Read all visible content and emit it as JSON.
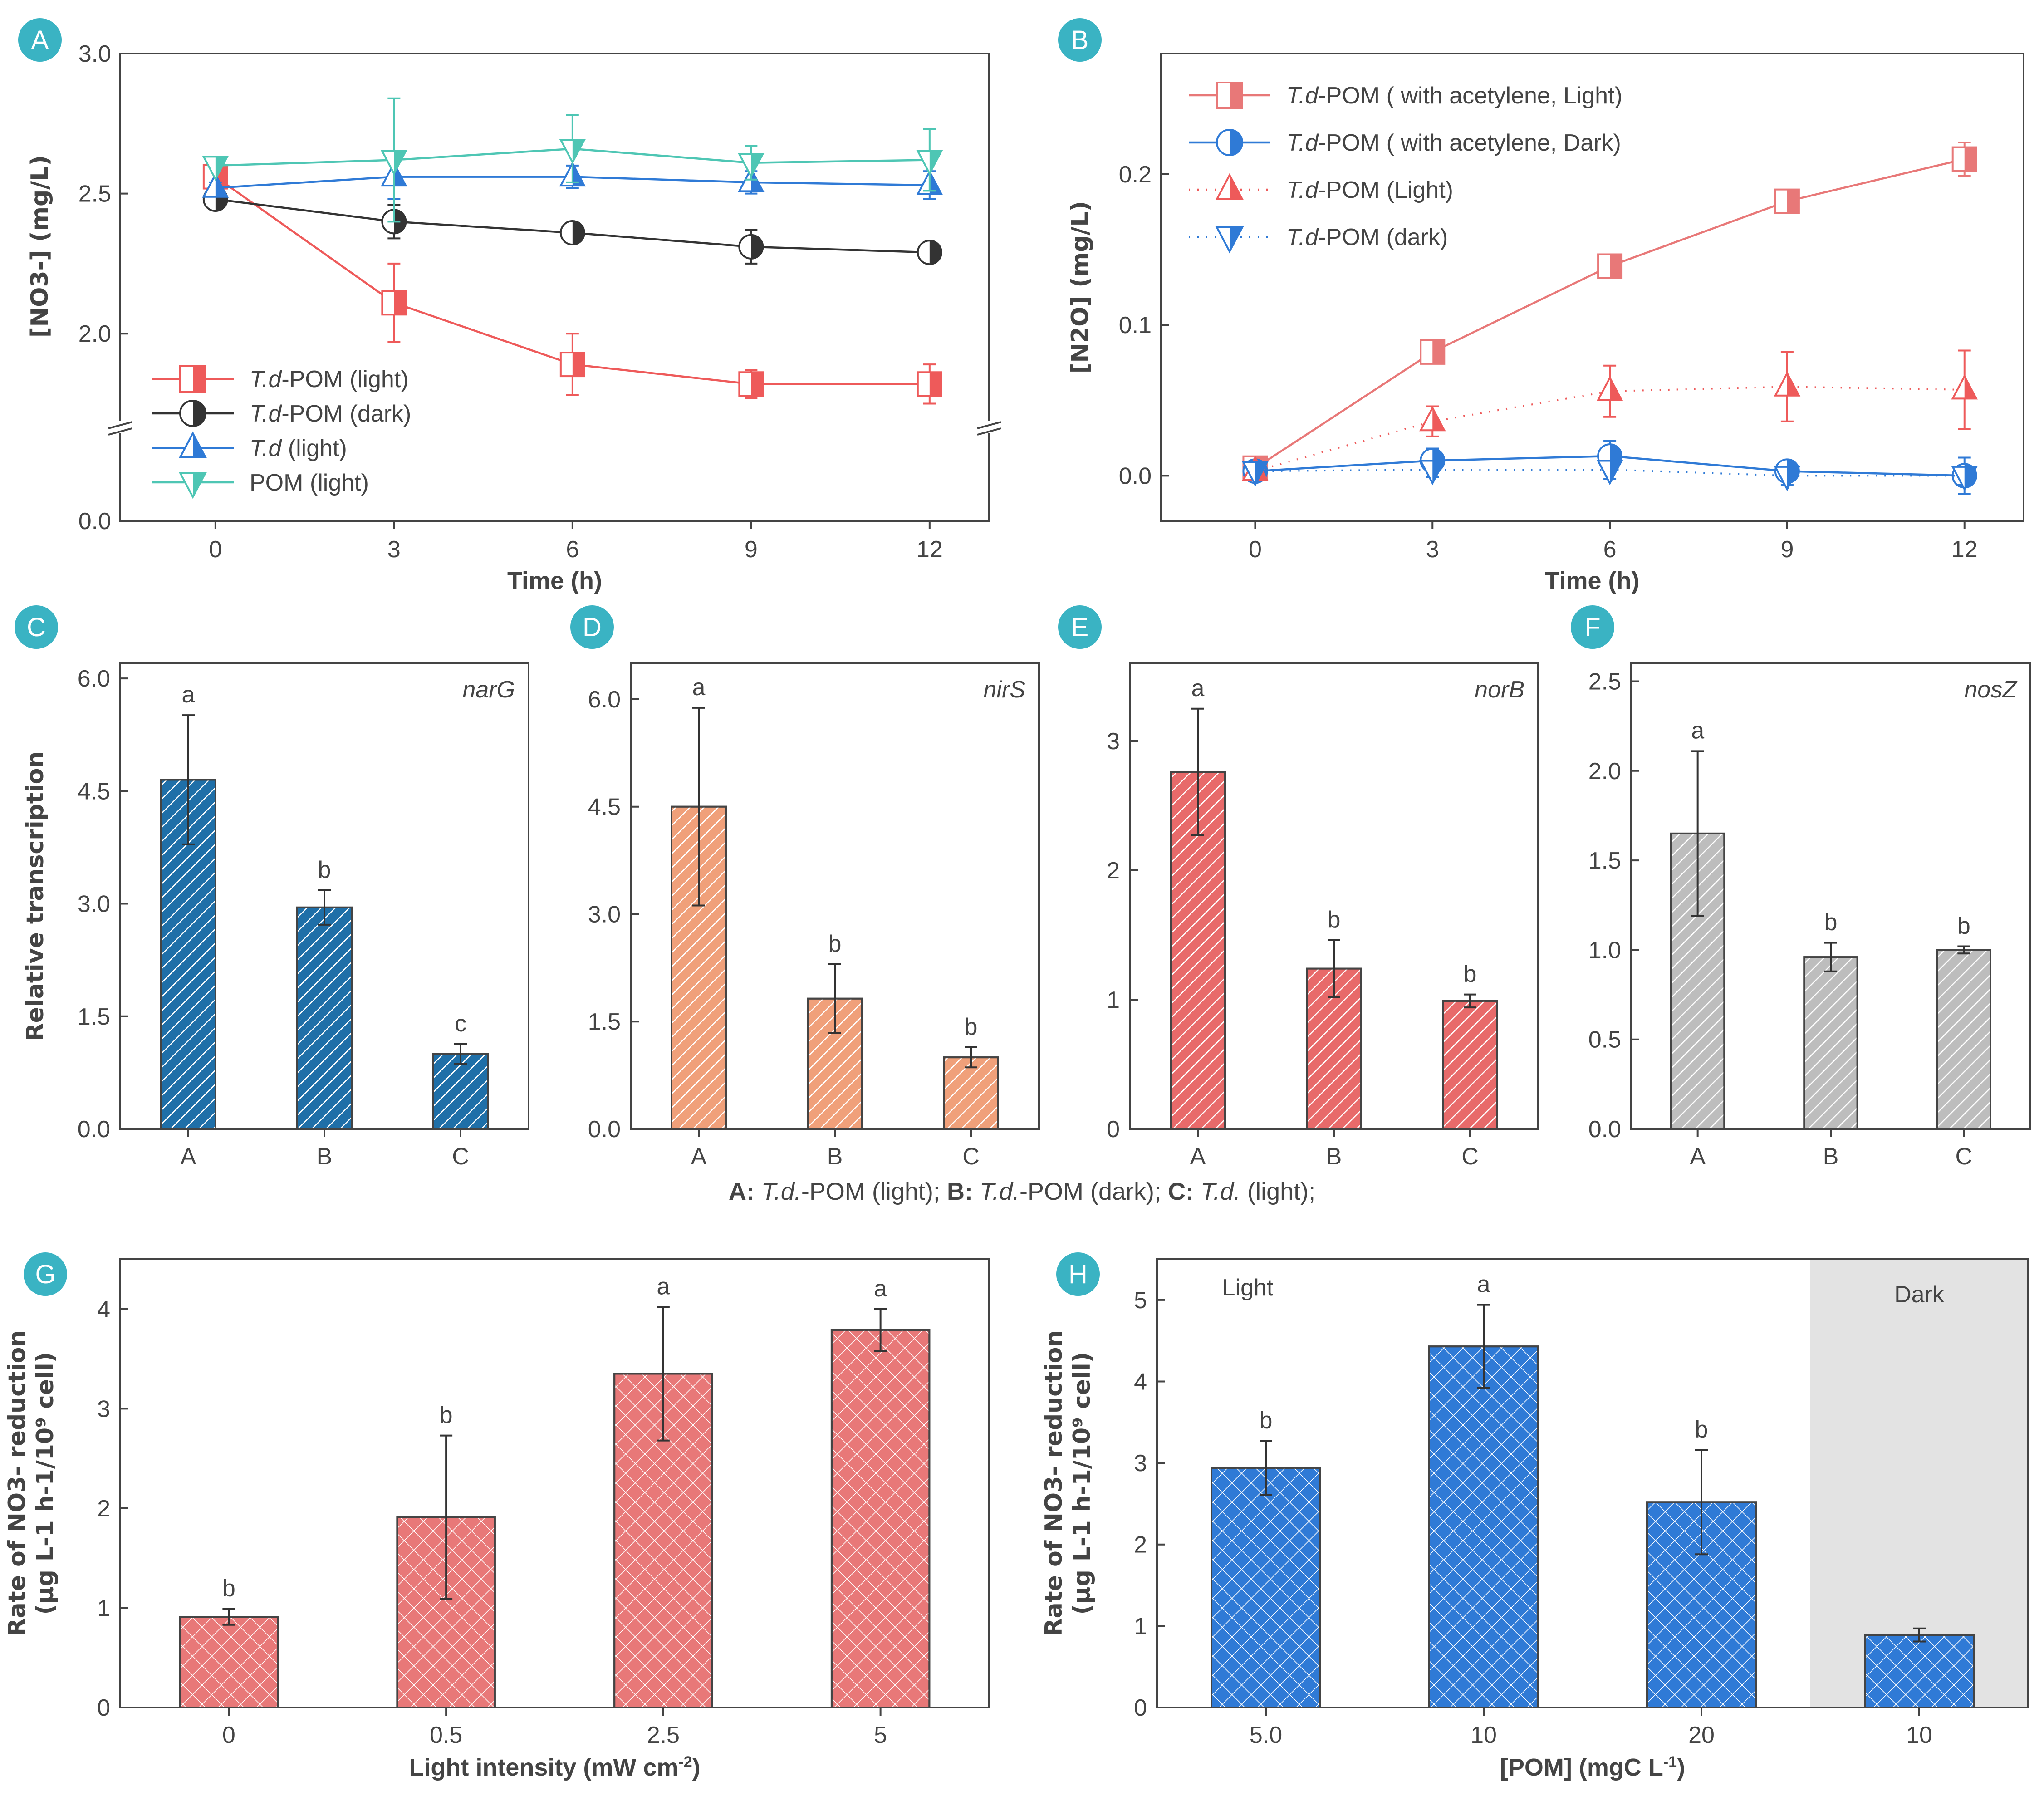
{
  "badge_color": "#3ab3c3",
  "caption": {
    "parts": [
      {
        "b": "A:",
        "i": " T.d.",
        "t": "-POM (light);"
      },
      {
        "b": " B:",
        "i": " T.d.",
        "t": "-POM (dark);"
      },
      {
        "b": " C:",
        "i": " T.d.",
        "t": " (light);"
      }
    ]
  },
  "chart_data": [
    {
      "panel": "A",
      "type": "line",
      "xlabel": "Time (h)",
      "ylabel": "[NO3-] (mg/L)",
      "x": [
        0,
        3,
        6,
        9,
        12
      ],
      "xticks": [
        "0",
        "3",
        "6",
        "9",
        "12"
      ],
      "yticks": [
        "0.0",
        "2.0",
        "2.5",
        "3.0"
      ],
      "ylim": [
        1.72,
        3.0
      ],
      "axis_break": true,
      "legend": "bottom-left",
      "series": [
        {
          "name": "T.d-POM (light)",
          "color": "#ee5a5a",
          "marker": "square-half",
          "values": [
            2.56,
            2.11,
            1.89,
            1.82,
            1.82
          ],
          "err": [
            0.03,
            0.14,
            0.11,
            0.05,
            0.07
          ]
        },
        {
          "name": "T.d-POM (dark)",
          "color": "#333333",
          "marker": "circle-half",
          "values": [
            2.48,
            2.4,
            2.36,
            2.31,
            2.29
          ],
          "err": [
            0.01,
            0.06,
            0.03,
            0.06,
            0.02
          ]
        },
        {
          "name": "T.d (light)",
          "color": "#2f7ad6",
          "marker": "triangle-up-half",
          "values": [
            2.52,
            2.56,
            2.56,
            2.54,
            2.53
          ],
          "err": [
            0.02,
            0.08,
            0.04,
            0.04,
            0.05
          ]
        },
        {
          "name": "POM (light)",
          "color": "#4ec6b4",
          "marker": "triangle-down-half",
          "values": [
            2.6,
            2.62,
            2.66,
            2.61,
            2.62
          ],
          "err": [
            0.01,
            0.22,
            0.12,
            0.06,
            0.11
          ]
        }
      ]
    },
    {
      "panel": "B",
      "type": "line",
      "xlabel": "Time (h)",
      "ylabel": "[N2O] (mg/L)",
      "x": [
        0,
        3,
        6,
        9,
        12
      ],
      "xticks": [
        "0",
        "3",
        "6",
        "9",
        "12"
      ],
      "yticks": [
        "0.0",
        "0.1",
        "0.2"
      ],
      "ylim": [
        -0.03,
        0.28
      ],
      "legend": "top-left",
      "series": [
        {
          "name": "T.d-POM ( with acetylene, Light)",
          "color": "#e87878",
          "style": "solid",
          "marker": "square-half",
          "values": [
            0.005,
            0.082,
            0.139,
            0.182,
            0.21
          ],
          "err": [
            0.003,
            0.002,
            0.002,
            0.005,
            0.011
          ]
        },
        {
          "name": "T.d-POM  ( with acetylene, Dark)",
          "color": "#2f7ad6",
          "style": "solid",
          "marker": "circle-half",
          "values": [
            0.003,
            0.01,
            0.013,
            0.003,
            0.0
          ],
          "err": [
            0.003,
            0.008,
            0.01,
            0.006,
            0.012
          ]
        },
        {
          "name": "T.d-POM (Light)",
          "color": "#ee5a5a",
          "style": "dotted",
          "marker": "triangle-up-half",
          "values": [
            0.003,
            0.036,
            0.056,
            0.059,
            0.057
          ],
          "err": [
            0.002,
            0.01,
            0.017,
            0.023,
            0.026
          ]
        },
        {
          "name": "T.d-POM (dark)",
          "color": "#2f7ad6",
          "style": "dotted",
          "marker": "triangle-down-half",
          "values": [
            0.003,
            0.004,
            0.004,
            0.0,
            0.0
          ],
          "err": [
            0.002,
            0.005,
            0.006,
            0.006,
            0.006
          ]
        }
      ]
    },
    {
      "panel": "C",
      "type": "bar",
      "gene": "narG",
      "ylabel": "Relative transcription",
      "categories": [
        "A",
        "B",
        "C"
      ],
      "values": [
        4.65,
        2.95,
        1.0
      ],
      "err": [
        0.86,
        0.23,
        0.13
      ],
      "letters": [
        "a",
        "b",
        "c"
      ],
      "yticks": [
        "0.0",
        "1.5",
        "3.0",
        "4.5",
        "6.0"
      ],
      "ylim": [
        0,
        6.2
      ],
      "color": "#1f6fa8",
      "hatch": "diagonal"
    },
    {
      "panel": "D",
      "type": "bar",
      "gene": "nirS",
      "ylabel": "",
      "categories": [
        "A",
        "B",
        "C"
      ],
      "values": [
        4.5,
        1.82,
        1.0
      ],
      "err": [
        1.38,
        0.48,
        0.14
      ],
      "letters": [
        "a",
        "b",
        "b"
      ],
      "yticks": [
        "0.0",
        "1.5",
        "3.0",
        "4.5",
        "6.0"
      ],
      "ylim": [
        0,
        6.5
      ],
      "color": "#f0a07a",
      "hatch": "diagonal"
    },
    {
      "panel": "E",
      "type": "bar",
      "gene": "norB",
      "ylabel": "",
      "categories": [
        "A",
        "B",
        "C"
      ],
      "values": [
        2.76,
        1.24,
        0.99
      ],
      "err": [
        0.49,
        0.22,
        0.05
      ],
      "letters": [
        "a",
        "b",
        "b"
      ],
      "yticks": [
        "0",
        "1",
        "2",
        "3"
      ],
      "ylim": [
        0,
        3.6
      ],
      "color": "#e86a6a",
      "hatch": "diagonal"
    },
    {
      "panel": "F",
      "type": "bar",
      "gene": "nosZ",
      "ylabel": "",
      "categories": [
        "A",
        "B",
        "C"
      ],
      "values": [
        1.65,
        0.96,
        1.0
      ],
      "err": [
        0.46,
        0.08,
        0.02
      ],
      "letters": [
        "a",
        "b",
        "b"
      ],
      "yticks": [
        "0.0",
        "0.5",
        "1.0",
        "1.5",
        "2.0",
        "2.5"
      ],
      "ylim": [
        0,
        2.6
      ],
      "color": "#bdbdbd",
      "hatch": "diagonal"
    },
    {
      "panel": "G",
      "type": "bar",
      "xlabel": "Light intensity (mW cm-2)",
      "ylabel": "Rate of NO3- reduction (μg L-1 h-1/10⁹ cell)",
      "categories": [
        "0",
        "0.5",
        "2.5",
        "5"
      ],
      "values": [
        0.91,
        1.91,
        3.35,
        3.79
      ],
      "err": [
        0.08,
        0.82,
        0.67,
        0.21
      ],
      "letters": [
        "b",
        "b",
        "a",
        "a"
      ],
      "yticks": [
        "0",
        "1",
        "2",
        "3",
        "4"
      ],
      "ylim": [
        0,
        4.5
      ],
      "color": "#e87878",
      "hatch": "crosshatch"
    },
    {
      "panel": "H",
      "type": "bar",
      "xlabel": "[POM] (mgC L-1)",
      "ylabel": "Rate of NO3- reduction (μg L-1 h-1/10⁹ cell)",
      "categories": [
        "5.0",
        "10",
        "20",
        "10"
      ],
      "values": [
        2.94,
        4.43,
        2.52,
        0.89
      ],
      "err": [
        0.33,
        0.51,
        0.64,
        0.08
      ],
      "letters": [
        "b",
        "a",
        "b",
        ""
      ],
      "yticks": [
        "0",
        "1",
        "2",
        "3",
        "4",
        "5"
      ],
      "ylim": [
        0,
        5.5
      ],
      "regions": [
        {
          "label": "Light",
          "shaded": false
        },
        {
          "label": "Dark",
          "shaded": true
        }
      ],
      "color": "#2f7ad6",
      "hatch": "crosshatch"
    }
  ]
}
